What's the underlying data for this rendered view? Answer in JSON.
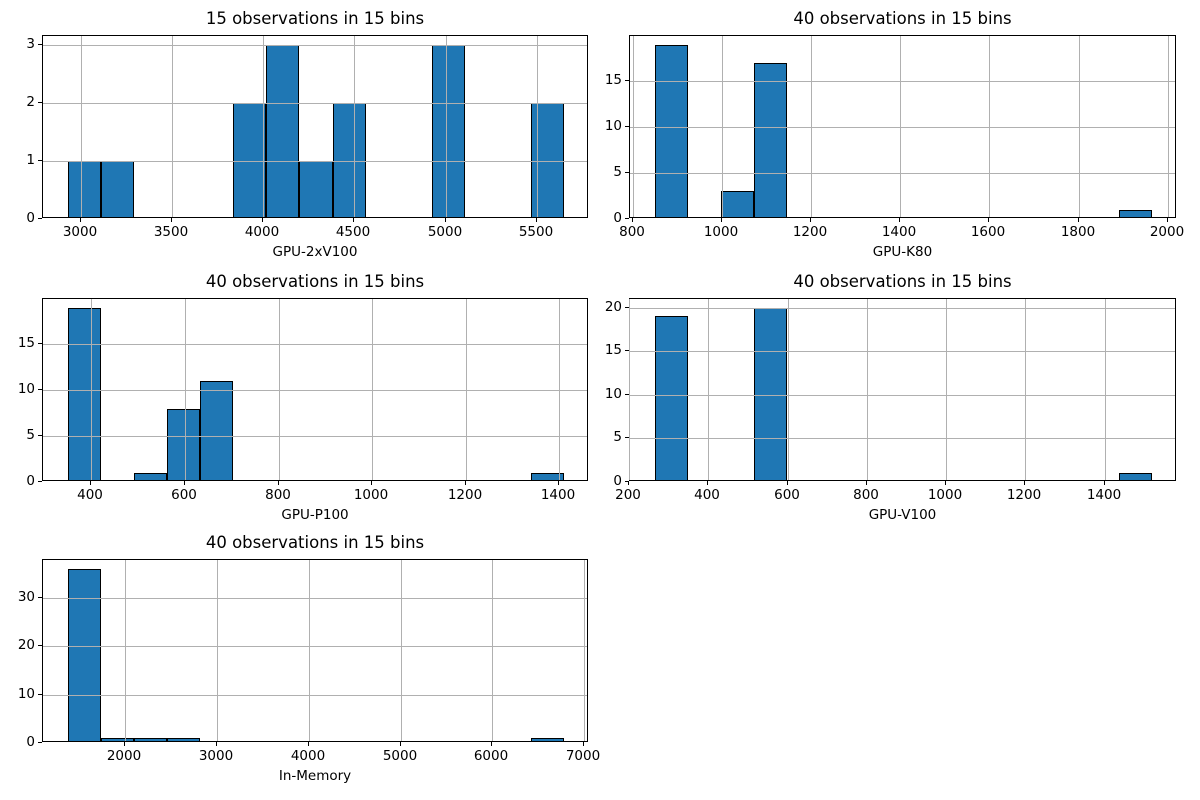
{
  "figure": {
    "background_color": "#ffffff",
    "bar_fill_color": "#1f77b4",
    "bar_edge_color": "#000000",
    "grid_color": "#b0b0b0",
    "spine_color": "#000000",
    "text_color": "#000000"
  },
  "chart_data": [
    {
      "type": "bar",
      "subtype": "histogram",
      "title": "15 observations in 15 bins",
      "xlabel": "GPU-2xV100",
      "ylabel": "",
      "n_observations": 15,
      "n_bins": 15,
      "bin_start": 2930,
      "bin_width": 181.333,
      "counts": [
        1,
        1,
        0,
        0,
        0,
        2,
        3,
        1,
        2,
        0,
        0,
        3,
        0,
        0,
        2
      ],
      "xticks": [
        3000,
        3500,
        4000,
        4500,
        5000,
        5500
      ],
      "yticks": [
        0,
        1,
        2,
        3
      ],
      "xlim": [
        2794,
        5786
      ],
      "ylim": [
        0,
        3.15
      ],
      "grid": true,
      "legend": null
    },
    {
      "type": "bar",
      "subtype": "histogram",
      "title": "40 observations in 15 bins",
      "xlabel": "GPU-K80",
      "ylabel": "",
      "n_observations": 40,
      "n_bins": 15,
      "bin_start": 850,
      "bin_width": 74.333,
      "counts": [
        19,
        0,
        3,
        17,
        0,
        0,
        0,
        0,
        0,
        0,
        0,
        0,
        0,
        0,
        1
      ],
      "xticks": [
        800,
        1000,
        1200,
        1400,
        1600,
        1800,
        2000
      ],
      "yticks": [
        0,
        5,
        10,
        15
      ],
      "xlim": [
        794.25,
        2020.75
      ],
      "ylim": [
        0,
        19.95
      ],
      "grid": true,
      "legend": null
    },
    {
      "type": "bar",
      "subtype": "histogram",
      "title": "40 observations in 15 bins",
      "xlabel": "GPU-P100",
      "ylabel": "",
      "n_observations": 40,
      "n_bins": 15,
      "bin_start": 350,
      "bin_width": 70.667,
      "counts": [
        19,
        0,
        1,
        8,
        11,
        0,
        0,
        0,
        0,
        0,
        0,
        0,
        0,
        0,
        1
      ],
      "xticks": [
        400,
        600,
        800,
        1000,
        1200,
        1400
      ],
      "yticks": [
        0,
        5,
        10,
        15
      ],
      "xlim": [
        297,
        1463
      ],
      "ylim": [
        0,
        19.95
      ],
      "grid": true,
      "legend": null
    },
    {
      "type": "bar",
      "subtype": "histogram",
      "title": "40 observations in 15 bins",
      "xlabel": "GPU-V100",
      "ylabel": "",
      "n_observations": 40,
      "n_bins": 15,
      "bin_start": 265,
      "bin_width": 83.667,
      "counts": [
        19,
        0,
        0,
        20,
        0,
        0,
        0,
        0,
        0,
        0,
        0,
        0,
        0,
        0,
        1
      ],
      "xticks": [
        200,
        400,
        600,
        800,
        1000,
        1200,
        1400
      ],
      "yticks": [
        0,
        5,
        10,
        15,
        20
      ],
      "xlim": [
        202.25,
        1582.75
      ],
      "ylim": [
        0,
        21
      ],
      "grid": true,
      "legend": null
    },
    {
      "type": "bar",
      "subtype": "histogram",
      "title": "40 observations in 15 bins",
      "xlabel": "In-Memory",
      "ylabel": "",
      "n_observations": 40,
      "n_bins": 15,
      "bin_start": 1380,
      "bin_width": 360,
      "counts": [
        36,
        1,
        1,
        1,
        0,
        0,
        0,
        0,
        0,
        0,
        0,
        0,
        0,
        0,
        1
      ],
      "xticks": [
        2000,
        3000,
        4000,
        5000,
        6000,
        7000
      ],
      "yticks": [
        0,
        10,
        20,
        30
      ],
      "xlim": [
        1110,
        7050
      ],
      "ylim": [
        0,
        37.8
      ],
      "grid": true,
      "legend": null
    }
  ]
}
